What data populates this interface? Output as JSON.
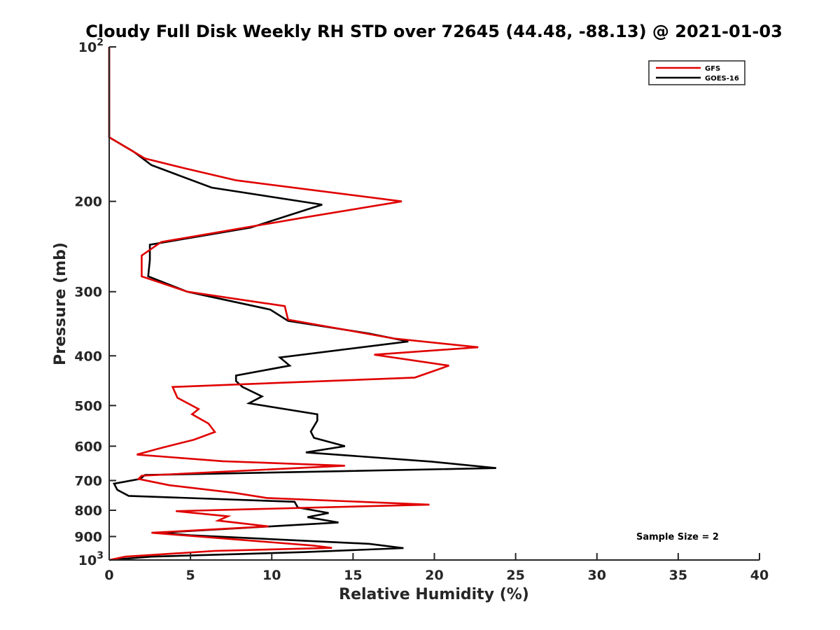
{
  "chart_data": {
    "type": "line",
    "title": "Cloudy Full Disk Weekly RH STD over 72645 (44.48, -88.13) @ 2021-01-03",
    "xlabel": "Relative Humidity (%)",
    "ylabel": "Pressure (mb)",
    "xlim": [
      0,
      40
    ],
    "ylim": [
      100,
      1000
    ],
    "y_scale": "log",
    "y_reversed": true,
    "x_ticks": [
      "0",
      "5",
      "10",
      "15",
      "20",
      "25",
      "30",
      "35",
      "40"
    ],
    "y_ticks": [
      {
        "value": 100,
        "base": "10",
        "exp": "2"
      },
      {
        "value": 200,
        "label": "200"
      },
      {
        "value": 300,
        "label": "300"
      },
      {
        "value": 400,
        "label": "400"
      },
      {
        "value": 500,
        "label": "500"
      },
      {
        "value": 600,
        "label": "600"
      },
      {
        "value": 700,
        "label": "700"
      },
      {
        "value": 800,
        "label": "800"
      },
      {
        "value": 900,
        "label": "900"
      },
      {
        "value": 1000,
        "base": "10",
        "exp": "3"
      }
    ],
    "legend_position": "top-right",
    "grid": false,
    "series": [
      {
        "name": "GFS",
        "color": "#e00000",
        "points": [
          [
            0,
            100
          ],
          [
            0,
            150
          ],
          [
            2.2,
            165
          ],
          [
            4.5,
            172
          ],
          [
            7.8,
            182
          ],
          [
            18,
            200
          ],
          [
            12,
            215
          ],
          [
            3.2,
            240
          ],
          [
            2,
            255
          ],
          [
            2,
            280
          ],
          [
            4.8,
            300
          ],
          [
            10.8,
            320
          ],
          [
            11,
            340
          ],
          [
            17.5,
            370
          ],
          [
            22.7,
            385
          ],
          [
            16.3,
            398
          ],
          [
            20.9,
            418
          ],
          [
            18.8,
            441
          ],
          [
            3.9,
            460
          ],
          [
            4.2,
            483
          ],
          [
            5.5,
            508
          ],
          [
            5.1,
            520
          ],
          [
            6.1,
            542
          ],
          [
            6.5,
            563
          ],
          [
            5.2,
            583
          ],
          [
            3,
            607
          ],
          [
            1.7,
            623
          ],
          [
            7,
            642
          ],
          [
            14.5,
            655
          ],
          [
            2,
            685
          ],
          [
            1.8,
            695
          ],
          [
            3.7,
            715
          ],
          [
            7.7,
            740
          ],
          [
            9.7,
            757
          ],
          [
            19.7,
            780
          ],
          [
            4.1,
            803
          ],
          [
            7.3,
            822
          ],
          [
            6.7,
            838
          ],
          [
            9.8,
            860
          ],
          [
            2.6,
            885
          ],
          [
            12.5,
            937
          ],
          [
            13.7,
            947
          ],
          [
            6.5,
            960
          ],
          [
            1,
            985
          ],
          [
            0,
            1000
          ]
        ]
      },
      {
        "name": "GOES-16",
        "color": "#000000",
        "points": [
          [
            0,
            100
          ],
          [
            0,
            150
          ],
          [
            1.5,
            160
          ],
          [
            2.6,
            170
          ],
          [
            6.3,
            188
          ],
          [
            13.1,
            203
          ],
          [
            8.7,
            225
          ],
          [
            2.5,
            243
          ],
          [
            2.5,
            260
          ],
          [
            2.4,
            280
          ],
          [
            4.8,
            300
          ],
          [
            9.9,
            325
          ],
          [
            11,
            342
          ],
          [
            16,
            362
          ],
          [
            18.4,
            375
          ],
          [
            10.5,
            403
          ],
          [
            11.1,
            418
          ],
          [
            7.8,
            437
          ],
          [
            7.8,
            448
          ],
          [
            8.2,
            460
          ],
          [
            9.4,
            480
          ],
          [
            8.6,
            495
          ],
          [
            12.8,
            520
          ],
          [
            12.8,
            535
          ],
          [
            12.4,
            562
          ],
          [
            12.6,
            578
          ],
          [
            14.5,
            600
          ],
          [
            12.1,
            617
          ],
          [
            19.8,
            643
          ],
          [
            23.8,
            662
          ],
          [
            2.2,
            683
          ],
          [
            1.9,
            695
          ],
          [
            0.3,
            710
          ],
          [
            0.5,
            730
          ],
          [
            1.2,
            750
          ],
          [
            11.4,
            770
          ],
          [
            11.6,
            790
          ],
          [
            13.5,
            810
          ],
          [
            12.2,
            825
          ],
          [
            14.1,
            845
          ],
          [
            3.1,
            885
          ],
          [
            5,
            895
          ],
          [
            16,
            930
          ],
          [
            18.1,
            948
          ],
          [
            12,
            965
          ],
          [
            2.6,
            985
          ],
          [
            0,
            1000
          ]
        ]
      }
    ],
    "annotations": [
      "Sample Size = 2"
    ]
  }
}
